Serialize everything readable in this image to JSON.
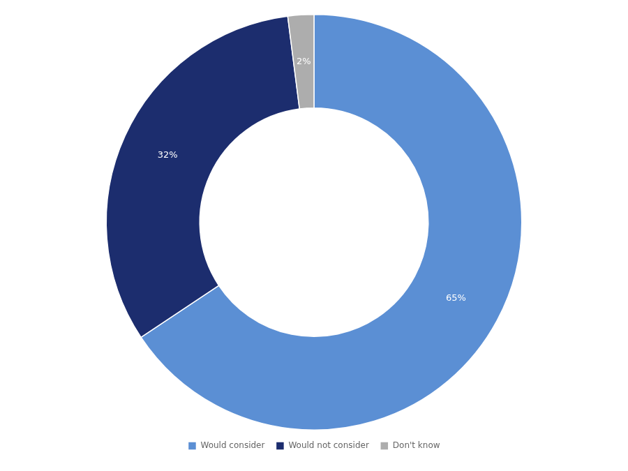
{
  "chart_data": {
    "type": "doughnut",
    "categories": [
      "Would consider",
      "Would not consider",
      "Don't know"
    ],
    "values": [
      65,
      32,
      2
    ],
    "value_labels": [
      "65%",
      "32%",
      "2%"
    ],
    "colors": [
      "#5B8FD4",
      "#1C2D6E",
      "#ADADAD"
    ],
    "data_labels": true,
    "legend": "bottom"
  }
}
